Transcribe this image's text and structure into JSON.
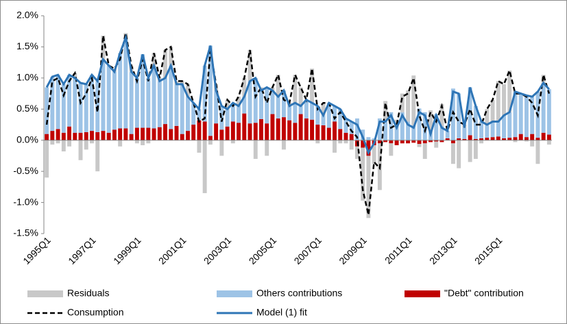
{
  "chart_data": {
    "type": "bar",
    "categories": [
      "1995Q1",
      null,
      null,
      null,
      null,
      null,
      null,
      null,
      "1997Q1",
      null,
      null,
      null,
      null,
      null,
      null,
      null,
      "1999Q1",
      null,
      null,
      null,
      null,
      null,
      null,
      null,
      "2001Q1",
      null,
      null,
      null,
      null,
      null,
      null,
      null,
      "2003Q1",
      null,
      null,
      null,
      null,
      null,
      null,
      null,
      "2005Q1",
      null,
      null,
      null,
      null,
      null,
      null,
      null,
      "2007Q1",
      null,
      null,
      null,
      null,
      null,
      null,
      null,
      "2009Q1",
      null,
      null,
      null,
      null,
      null,
      null,
      null,
      "2011Q1",
      null,
      null,
      null,
      null,
      null,
      null,
      null,
      "2013Q1",
      null,
      null,
      null,
      null,
      null,
      null,
      null,
      "2015Q1",
      null,
      null,
      null,
      null,
      null,
      null,
      null,
      null,
      null
    ],
    "series": [
      {
        "name": "Residuals",
        "kind": "bar",
        "color": "#c8c8c8",
        "values": [
          -0.6,
          -0.07,
          -0.05,
          -0.18,
          -0.1,
          0.08,
          -0.32,
          -0.15,
          -0.05,
          -0.5,
          0.38,
          0,
          0.05,
          -0.1,
          0.07,
          0.1,
          -0.05,
          -0.08,
          -0.05,
          0.2,
          0.05,
          0.45,
          0.3,
          0.05,
          0.05,
          0.2,
          0,
          -0.2,
          -0.85,
          -0.07,
          0.1,
          -0.25,
          0.15,
          -0.05,
          0.15,
          0.3,
          0.5,
          -0.3,
          0.05,
          -0.25,
          0.05,
          0.35,
          -0.15,
          0.05,
          0.45,
          0.3,
          0,
          0.55,
          -0.05,
          0.2,
          0,
          -0.2,
          -0.05,
          -0.05,
          -0.15,
          -0.2,
          -0.85,
          -1.0,
          -0.3,
          -0.75,
          0.3,
          -0.2,
          0.05,
          0.3,
          0.5,
          0.8,
          -0.05,
          -0.25,
          0.35,
          -0.1,
          0.35,
          0,
          -0.33,
          -0.45,
          0.05,
          -0.35,
          -0.3,
          -0.05,
          0.25,
          0.35,
          0.65,
          0.5,
          0.67,
          -0.03,
          0,
          -0.02,
          -0.1,
          -0.38,
          0.13,
          -0.07
        ]
      },
      {
        "name": "Others contributions",
        "kind": "bar",
        "color": "#9dc3e6",
        "values": [
          0.75,
          0.87,
          0.87,
          0.78,
          0.83,
          0.88,
          0.8,
          0.77,
          0.9,
          0.82,
          1.15,
          1.08,
          0.93,
          1.21,
          1.46,
          1.0,
          0.8,
          1.18,
          0.8,
          1.01,
          0.74,
          0.74,
          1.02,
          0.67,
          0.8,
          0.55,
          0.35,
          0.18,
          0.9,
          1.45,
          0.53,
          0.38,
          0.28,
          0.3,
          0.27,
          0.27,
          0.68,
          0.72,
          0.46,
          0.58,
          0.38,
          0.35,
          0.43,
          0.23,
          0.32,
          0.13,
          0.3,
          0.27,
          0.3,
          0.16,
          0.4,
          0.25,
          0.32,
          0.23,
          0.2,
          0.35,
          0.17,
          0.05,
          0.03,
          0.35,
          0.33,
          0.45,
          0.28,
          0.45,
          0.3,
          0.24,
          0.51,
          0.45,
          0.13,
          0.42,
          0.23,
          0.12,
          0.83,
          0.72,
          0.18,
          0.77,
          0.53,
          0.27,
          0.21,
          0.25,
          0.24,
          0.37,
          0.41,
          0.73,
          0.65,
          0.67,
          0.6,
          0.74,
          0.8,
          0.73
        ]
      },
      {
        "name": "\"Debt\" contribution",
        "kind": "bar",
        "color": "#c00000",
        "values": [
          0.1,
          0.15,
          0.18,
          0.12,
          0.22,
          0.12,
          0.12,
          0.13,
          0.15,
          0.13,
          0.15,
          0.12,
          0.17,
          0.19,
          0.19,
          0.1,
          0.2,
          0.2,
          0.2,
          0.19,
          0.21,
          0.26,
          0.18,
          0.23,
          0.1,
          0.15,
          0.25,
          0.32,
          0.3,
          0.07,
          0.27,
          0.17,
          0.22,
          0.3,
          0.28,
          0.43,
          0.27,
          0.28,
          0.34,
          0.27,
          0.42,
          0.35,
          0.37,
          0.32,
          0.28,
          0.42,
          0.35,
          0.33,
          0.25,
          0.24,
          0.2,
          0.3,
          0.18,
          0.12,
          0.1,
          -0.1,
          -0.12,
          -0.25,
          -0.08,
          -0.05,
          -0.03,
          -0.05,
          -0.08,
          -0.05,
          -0.05,
          -0.04,
          -0.06,
          -0.05,
          -0.03,
          -0.02,
          -0.03,
          0.03,
          -0.05,
          0.03,
          0.02,
          0.08,
          0.02,
          0.03,
          0.04,
          0.05,
          0.06,
          0.03,
          0.04,
          0.05,
          0.1,
          0.05,
          0.1,
          0.04,
          0.12,
          0.09
        ]
      },
      {
        "name": "Consumption",
        "kind": "line",
        "color": "#000000",
        "values": [
          0.25,
          0.95,
          1.0,
          0.72,
          0.95,
          1.08,
          0.6,
          0.75,
          1.0,
          0.45,
          1.68,
          1.2,
          1.15,
          1.3,
          1.72,
          1.2,
          0.95,
          1.3,
          0.95,
          1.4,
          1.0,
          1.45,
          1.5,
          0.95,
          0.95,
          0.9,
          0.6,
          0.3,
          0.35,
          1.45,
          0.9,
          0.3,
          0.65,
          0.55,
          0.7,
          1.0,
          1.45,
          0.7,
          0.85,
          0.6,
          0.85,
          1.05,
          0.65,
          0.6,
          1.05,
          0.85,
          0.65,
          1.15,
          0.5,
          0.6,
          0.6,
          0.35,
          0.45,
          0.3,
          0.15,
          0.05,
          -0.8,
          -1.2,
          -0.35,
          -0.45,
          0.6,
          0.2,
          0.25,
          0.7,
          0.75,
          1.0,
          0.4,
          0.15,
          0.45,
          0.3,
          0.55,
          0.15,
          0.45,
          0.3,
          0.25,
          0.5,
          0.25,
          0.25,
          0.5,
          0.65,
          0.95,
          0.9,
          1.12,
          0.75,
          0.75,
          0.7,
          0.6,
          0.4,
          1.05,
          0.75
        ]
      },
      {
        "name": "Model (1) fit",
        "kind": "line",
        "color": "#2e75b6",
        "values": [
          0.85,
          1.02,
          1.05,
          0.9,
          1.05,
          1.0,
          0.92,
          0.9,
          1.05,
          0.95,
          1.3,
          1.2,
          1.1,
          1.4,
          1.65,
          1.1,
          1.0,
          1.38,
          1.0,
          1.2,
          0.95,
          1.0,
          1.2,
          0.9,
          0.9,
          0.7,
          0.6,
          0.5,
          1.2,
          1.52,
          0.8,
          0.55,
          0.5,
          0.6,
          0.55,
          0.7,
          0.95,
          1.0,
          0.8,
          0.85,
          0.8,
          0.7,
          0.8,
          0.55,
          0.6,
          0.55,
          0.65,
          0.6,
          0.55,
          0.4,
          0.6,
          0.55,
          0.5,
          0.35,
          0.3,
          0.25,
          0.05,
          -0.2,
          -0.05,
          0.3,
          0.3,
          0.4,
          0.2,
          0.4,
          0.25,
          0.2,
          0.45,
          0.4,
          0.1,
          0.4,
          0.2,
          0.15,
          0.78,
          0.75,
          0.2,
          0.85,
          0.55,
          0.3,
          0.25,
          0.3,
          0.3,
          0.4,
          0.45,
          0.78,
          0.75,
          0.72,
          0.7,
          0.78,
          0.92,
          0.82
        ]
      }
    ],
    "ylim": [
      -1.5,
      2.0
    ],
    "yticks": [
      {
        "value": -1.5,
        "label": "-1.5%"
      },
      {
        "value": -1.0,
        "label": "-1.0%"
      },
      {
        "value": -0.5,
        "label": "-0.5%"
      },
      {
        "value": 0,
        "label": "0.0%"
      },
      {
        "value": 0.5,
        "label": "0.5%"
      },
      {
        "value": 1.0,
        "label": "1.0%"
      },
      {
        "value": 1.5,
        "label": "1.5%"
      },
      {
        "value": 2.0,
        "label": "2.0%"
      }
    ],
    "grid": false
  }
}
